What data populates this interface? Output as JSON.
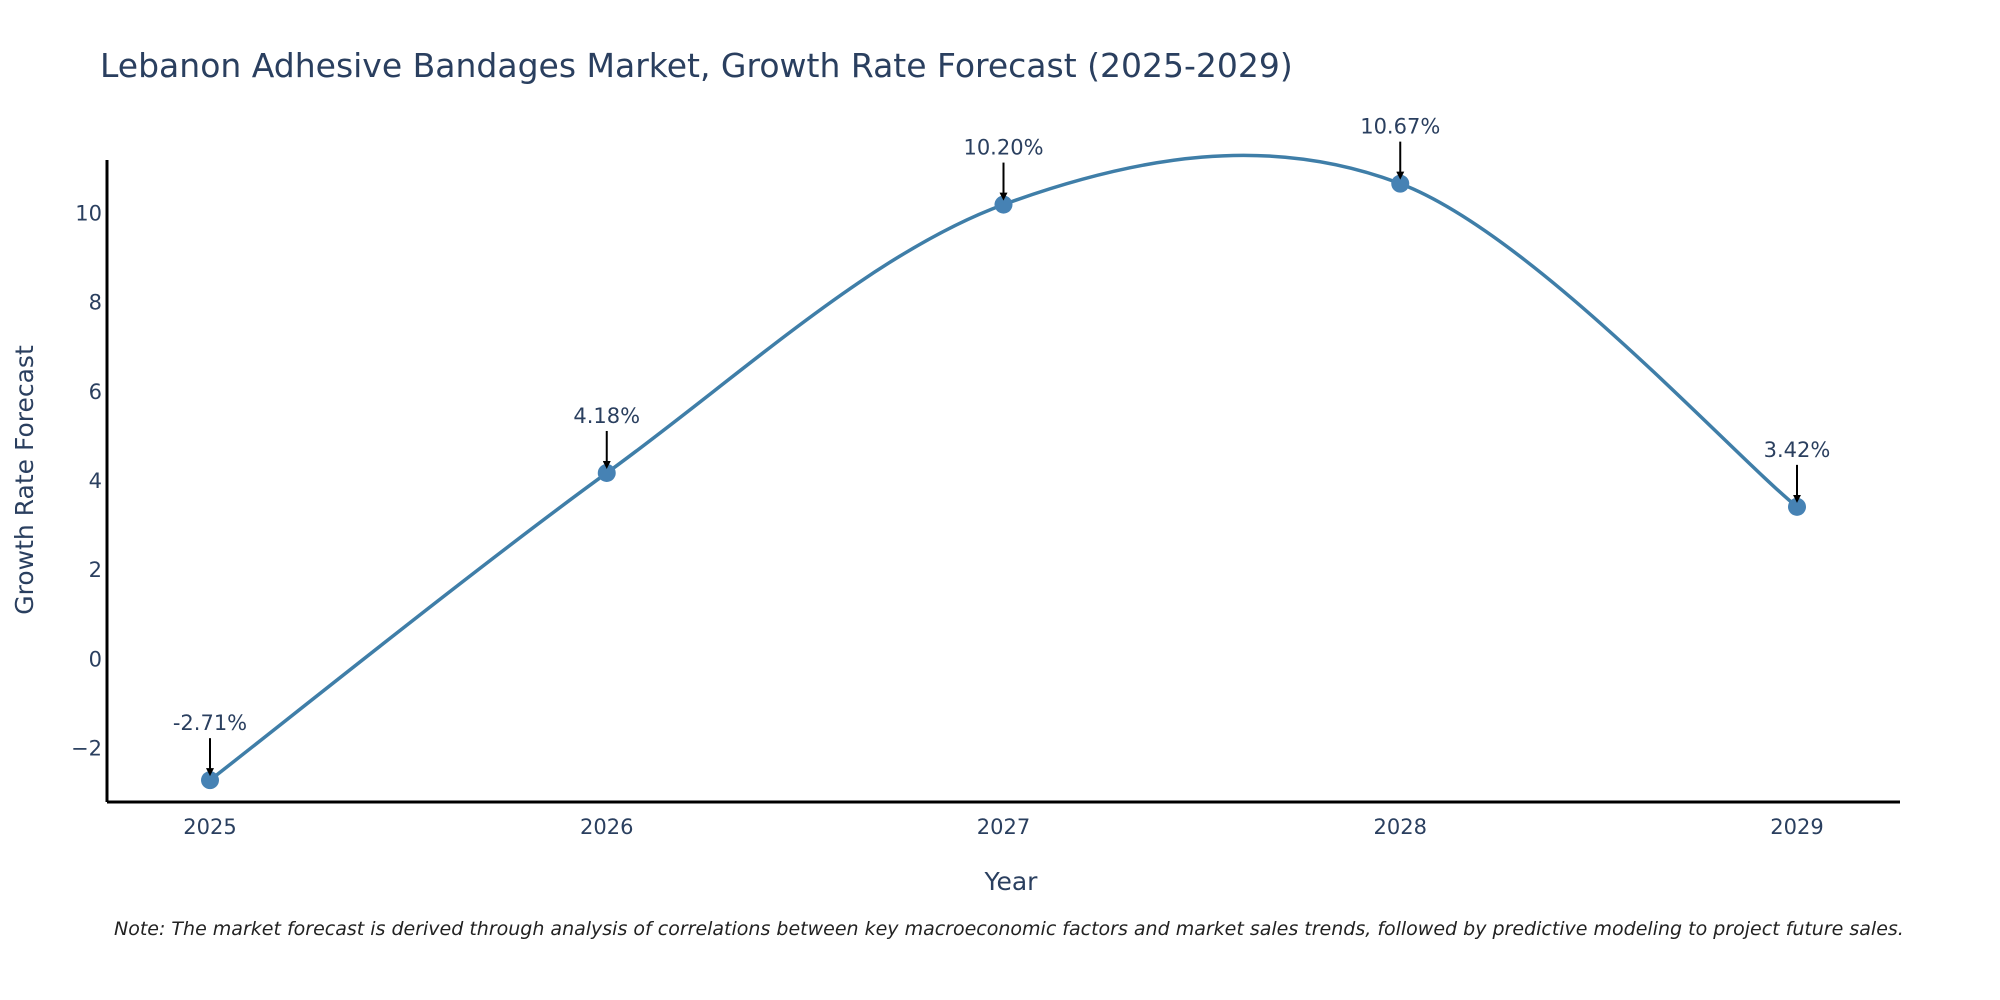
{
  "chart_data": {
    "type": "line",
    "title": "Lebanon Adhesive Bandages Market, Growth Rate Forecast (2025-2029)",
    "xlabel": "Year",
    "ylabel": "Growth Rate Forecast",
    "categories": [
      "2025",
      "2026",
      "2027",
      "2028",
      "2029"
    ],
    "series": [
      {
        "name": "Growth Rate Forecast",
        "values": [
          -2.71,
          4.18,
          10.2,
          10.67,
          3.42
        ]
      }
    ],
    "annotations": [
      "-2.71%",
      "4.18%",
      "10.20%",
      "10.67%",
      "3.42%"
    ],
    "ylim": [
      -3.2,
      11.2
    ],
    "yticks": [
      -2,
      0,
      2,
      4,
      6,
      8,
      10
    ],
    "ytick_labels": [
      "−2",
      "0",
      "2",
      "4",
      "6",
      "8",
      "10"
    ],
    "grid": false,
    "line_shape": "spline",
    "line_color": "#3f7ea8",
    "marker_color": "#4682b4",
    "axis_color": "#000000",
    "text_color": "#2a3f5f",
    "note": "Note: The market forecast is derived through analysis of correlations between key macroeconomic factors and market sales trends, followed by predictive modeling to project future sales."
  }
}
